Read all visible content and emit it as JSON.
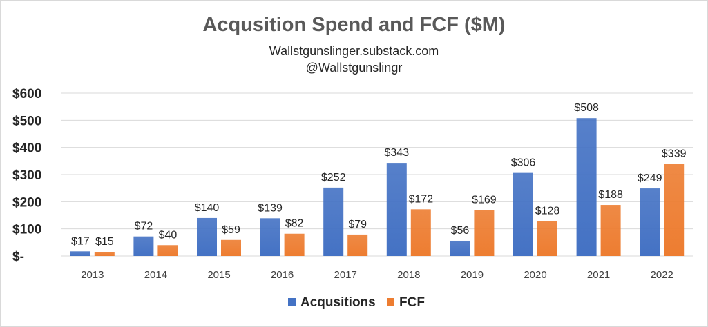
{
  "chart_data": {
    "type": "bar",
    "title": "Acqusition Spend and FCF ($M)",
    "subtitle_lines": [
      "Wallstgunslinger.substack.com",
      "@Wallstgunslingr"
    ],
    "categories": [
      "2013",
      "2014",
      "2015",
      "2016",
      "2017",
      "2018",
      "2019",
      "2020",
      "2021",
      "2022"
    ],
    "series": [
      {
        "name": "Acqusitions",
        "color": "#4472c4",
        "values": [
          17,
          72,
          140,
          139,
          252,
          343,
          56,
          306,
          508,
          249
        ],
        "labels": [
          "$17",
          "$72",
          "$140",
          "$139",
          "$252",
          "$343",
          "$56",
          "$306",
          "$508",
          "$249"
        ]
      },
      {
        "name": "FCF",
        "color": "#ed7d31",
        "values": [
          15,
          40,
          59,
          82,
          79,
          172,
          169,
          128,
          188,
          339
        ],
        "labels": [
          "$15",
          "$40",
          "$59",
          "$82",
          "$79",
          "$172",
          "$169",
          "$128",
          "$188",
          "$339"
        ]
      }
    ],
    "yticks": [
      "$-",
      "$100",
      "$200",
      "$300",
      "$400",
      "$500",
      "$600"
    ],
    "ylim": [
      0,
      600
    ],
    "xlabel": "",
    "ylabel": "",
    "grid": true,
    "legend_position": "bottom"
  }
}
